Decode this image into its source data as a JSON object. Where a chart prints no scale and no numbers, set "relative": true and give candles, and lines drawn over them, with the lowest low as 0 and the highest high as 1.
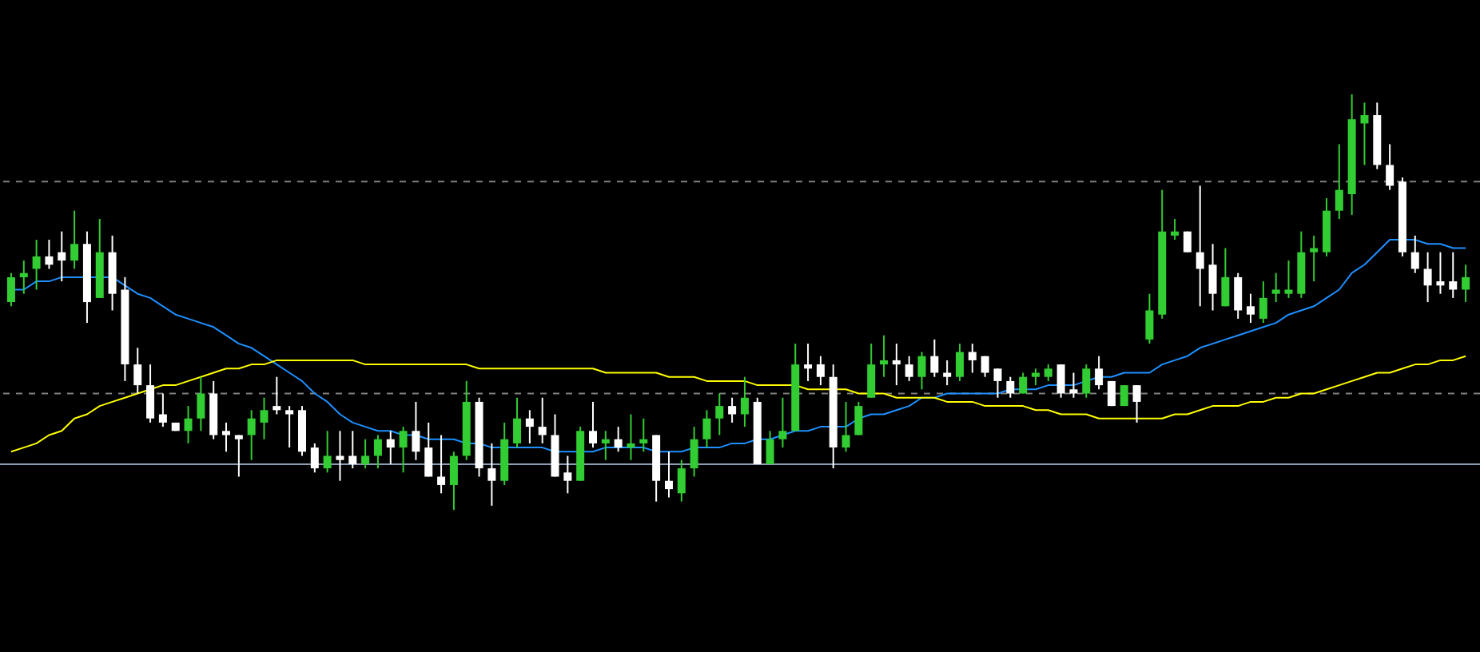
{
  "chart_data": {
    "type": "candlestick",
    "relative": true,
    "categories": [
      null,
      null,
      null,
      null,
      null,
      null,
      null,
      null,
      null,
      null,
      null,
      null,
      null,
      null,
      null,
      null,
      null,
      null,
      null,
      null,
      null,
      null,
      null,
      null,
      null,
      null,
      null,
      null,
      null,
      null,
      null,
      null,
      null,
      null,
      null,
      null,
      null,
      null,
      null,
      null,
      null,
      null,
      null,
      null,
      null,
      null,
      null,
      null,
      null,
      null,
      null,
      null,
      null,
      null,
      null,
      null,
      null,
      null,
      null,
      null,
      null,
      null,
      null,
      null,
      null,
      null,
      null,
      null,
      null,
      null,
      null,
      null,
      null,
      null,
      null,
      null,
      null,
      null,
      null,
      null,
      null,
      null,
      null,
      null,
      null,
      null,
      null,
      null,
      null,
      null,
      null,
      null,
      null,
      null,
      null,
      null,
      null,
      null,
      null,
      null,
      null,
      null,
      null,
      null,
      null,
      null,
      null,
      null,
      null,
      null,
      null,
      null,
      null,
      null,
      null,
      null
    ],
    "ohlc": [
      [
        0.5,
        0.57,
        0.49,
        0.56
      ],
      [
        0.56,
        0.6,
        0.52,
        0.57
      ],
      [
        0.58,
        0.65,
        0.53,
        0.61
      ],
      [
        0.61,
        0.65,
        0.58,
        0.59
      ],
      [
        0.62,
        0.67,
        0.55,
        0.6
      ],
      [
        0.6,
        0.72,
        0.58,
        0.64
      ],
      [
        0.64,
        0.67,
        0.45,
        0.5
      ],
      [
        0.51,
        0.7,
        0.51,
        0.62
      ],
      [
        0.62,
        0.66,
        0.48,
        0.52
      ],
      [
        0.53,
        0.56,
        0.31,
        0.35
      ],
      [
        0.35,
        0.39,
        0.28,
        0.3
      ],
      [
        0.3,
        0.35,
        0.21,
        0.22
      ],
      [
        0.23,
        0.28,
        0.2,
        0.21
      ],
      [
        0.21,
        0.21,
        0.19,
        0.19
      ],
      [
        0.19,
        0.25,
        0.16,
        0.22
      ],
      [
        0.22,
        0.32,
        0.19,
        0.28
      ],
      [
        0.28,
        0.31,
        0.17,
        0.18
      ],
      [
        0.19,
        0.21,
        0.14,
        0.18
      ],
      [
        0.18,
        0.18,
        0.08,
        0.17
      ],
      [
        0.18,
        0.24,
        0.12,
        0.22
      ],
      [
        0.21,
        0.27,
        0.17,
        0.24
      ],
      [
        0.25,
        0.32,
        0.23,
        0.24
      ],
      [
        0.24,
        0.25,
        0.15,
        0.23
      ],
      [
        0.24,
        0.25,
        0.13,
        0.14
      ],
      [
        0.15,
        0.16,
        0.09,
        0.1
      ],
      [
        0.1,
        0.19,
        0.09,
        0.13
      ],
      [
        0.13,
        0.19,
        0.07,
        0.12
      ],
      [
        0.13,
        0.19,
        0.1,
        0.11
      ],
      [
        0.11,
        0.17,
        0.1,
        0.13
      ],
      [
        0.13,
        0.18,
        0.1,
        0.17
      ],
      [
        0.17,
        0.19,
        0.11,
        0.15
      ],
      [
        0.15,
        0.2,
        0.09,
        0.19
      ],
      [
        0.19,
        0.26,
        0.12,
        0.14
      ],
      [
        0.15,
        0.21,
        0.08,
        0.08
      ],
      [
        0.08,
        0.18,
        0.04,
        0.06
      ],
      [
        0.06,
        0.14,
        0,
        0.13
      ],
      [
        0.13,
        0.31,
        0.12,
        0.26
      ],
      [
        0.26,
        0.27,
        0.08,
        0.1
      ],
      [
        0.1,
        0.16,
        0.01,
        0.07
      ],
      [
        0.07,
        0.21,
        0.06,
        0.17
      ],
      [
        0.16,
        0.27,
        0.15,
        0.22
      ],
      [
        0.22,
        0.24,
        0.16,
        0.2
      ],
      [
        0.2,
        0.27,
        0.16,
        0.18
      ],
      [
        0.18,
        0.23,
        0.08,
        0.08
      ],
      [
        0.09,
        0.13,
        0.04,
        0.07
      ],
      [
        0.07,
        0.2,
        0.07,
        0.19
      ],
      [
        0.19,
        0.26,
        0.15,
        0.16
      ],
      [
        0.16,
        0.19,
        0.12,
        0.17
      ],
      [
        0.17,
        0.2,
        0.14,
        0.15
      ],
      [
        0.15,
        0.23,
        0.12,
        0.16
      ],
      [
        0.16,
        0.22,
        0.14,
        0.17
      ],
      [
        0.18,
        0.18,
        0.02,
        0.07
      ],
      [
        0.07,
        0.14,
        0.03,
        0.05
      ],
      [
        0.04,
        0.12,
        0.02,
        0.1
      ],
      [
        0.1,
        0.2,
        0.08,
        0.17
      ],
      [
        0.17,
        0.24,
        0.15,
        0.22
      ],
      [
        0.22,
        0.28,
        0.18,
        0.25
      ],
      [
        0.25,
        0.27,
        0.21,
        0.23
      ],
      [
        0.23,
        0.32,
        0.2,
        0.27
      ],
      [
        0.26,
        0.27,
        0.11,
        0.11
      ],
      [
        0.11,
        0.19,
        0.11,
        0.17
      ],
      [
        0.17,
        0.27,
        0.15,
        0.19
      ],
      [
        0.19,
        0.4,
        0.19,
        0.35
      ],
      [
        0.35,
        0.4,
        0.31,
        0.34
      ],
      [
        0.35,
        0.37,
        0.3,
        0.32
      ],
      [
        0.32,
        0.35,
        0.1,
        0.15
      ],
      [
        0.15,
        0.26,
        0.14,
        0.18
      ],
      [
        0.18,
        0.26,
        0.18,
        0.25
      ],
      [
        0.27,
        0.4,
        0.27,
        0.35
      ],
      [
        0.35,
        0.42,
        0.32,
        0.36
      ],
      [
        0.36,
        0.4,
        0.3,
        0.35
      ],
      [
        0.35,
        0.37,
        0.31,
        0.32
      ],
      [
        0.32,
        0.38,
        0.29,
        0.37
      ],
      [
        0.37,
        0.41,
        0.32,
        0.33
      ],
      [
        0.33,
        0.36,
        0.3,
        0.32
      ],
      [
        0.32,
        0.4,
        0.31,
        0.38
      ],
      [
        0.38,
        0.4,
        0.33,
        0.36
      ],
      [
        0.37,
        0.37,
        0.32,
        0.33
      ],
      [
        0.34,
        0.34,
        0.27,
        0.31
      ],
      [
        0.31,
        0.32,
        0.27,
        0.28
      ],
      [
        0.28,
        0.33,
        0.28,
        0.32
      ],
      [
        0.32,
        0.34,
        0.3,
        0.33
      ],
      [
        0.32,
        0.35,
        0.31,
        0.34
      ],
      [
        0.35,
        0.35,
        0.27,
        0.28
      ],
      [
        0.29,
        0.33,
        0.27,
        0.28
      ],
      [
        0.28,
        0.35,
        0.27,
        0.34
      ],
      [
        0.34,
        0.37,
        0.29,
        0.3
      ],
      [
        0.31,
        0.31,
        0.25,
        0.25
      ],
      [
        0.25,
        0.3,
        0.25,
        0.3
      ],
      [
        0.3,
        0.3,
        0.21,
        0.26
      ],
      [
        0.41,
        0.52,
        0.4,
        0.48
      ],
      [
        0.47,
        0.77,
        0.46,
        0.67
      ],
      [
        0.66,
        0.7,
        0.65,
        0.67
      ],
      [
        0.67,
        0.67,
        0.62,
        0.62
      ],
      [
        0.62,
        0.78,
        0.49,
        0.58
      ],
      [
        0.59,
        0.64,
        0.48,
        0.52
      ],
      [
        0.49,
        0.63,
        0.49,
        0.56
      ],
      [
        0.56,
        0.57,
        0.46,
        0.48
      ],
      [
        0.49,
        0.52,
        0.45,
        0.47
      ],
      [
        0.46,
        0.55,
        0.45,
        0.51
      ],
      [
        0.52,
        0.57,
        0.5,
        0.53
      ],
      [
        0.52,
        0.6,
        0.51,
        0.53
      ],
      [
        0.52,
        0.67,
        0.51,
        0.62
      ],
      [
        0.62,
        0.66,
        0.55,
        0.63
      ],
      [
        0.62,
        0.75,
        0.61,
        0.72
      ],
      [
        0.72,
        0.88,
        0.7,
        0.77
      ],
      [
        0.76,
        1,
        0.71,
        0.94
      ],
      [
        0.93,
        0.98,
        0.83,
        0.95
      ],
      [
        0.95,
        0.98,
        0.82,
        0.83
      ],
      [
        0.83,
        0.88,
        0.77,
        0.78
      ],
      [
        0.79,
        0.8,
        0.61,
        0.62
      ],
      [
        0.62,
        0.66,
        0.57,
        0.58
      ],
      [
        0.58,
        0.62,
        0.5,
        0.54
      ],
      [
        0.55,
        0.62,
        0.52,
        0.54
      ],
      [
        0.55,
        0.62,
        0.51,
        0.53
      ],
      [
        0.53,
        0.59,
        0.5,
        0.56
      ]
    ],
    "series": [
      {
        "type": "line",
        "color": "#1e90ff",
        "values": [
          0.53,
          0.53,
          0.55,
          0.55,
          0.56,
          0.56,
          0.56,
          0.56,
          0.56,
          0.54,
          0.52,
          0.51,
          0.49,
          0.47,
          0.46,
          0.45,
          0.44,
          0.42,
          0.4,
          0.39,
          0.37,
          0.35,
          0.33,
          0.31,
          0.28,
          0.26,
          0.23,
          0.21,
          0.2,
          0.19,
          0.19,
          0.18,
          0.18,
          0.17,
          0.17,
          0.17,
          0.16,
          0.16,
          0.15,
          0.15,
          0.15,
          0.15,
          0.15,
          0.14,
          0.14,
          0.14,
          0.14,
          0.15,
          0.15,
          0.15,
          0.15,
          0.14,
          0.14,
          0.14,
          0.15,
          0.15,
          0.15,
          0.16,
          0.16,
          0.17,
          0.17,
          0.18,
          0.19,
          0.19,
          0.2,
          0.2,
          0.2,
          0.22,
          0.23,
          0.23,
          0.24,
          0.25,
          0.27,
          0.27,
          0.28,
          0.28,
          0.28,
          0.28,
          0.28,
          0.29,
          0.29,
          0.29,
          0.3,
          0.3,
          0.3,
          0.31,
          0.32,
          0.32,
          0.33,
          0.33,
          0.33,
          0.35,
          0.36,
          0.37,
          0.39,
          0.4,
          0.41,
          0.42,
          0.43,
          0.44,
          0.45,
          0.47,
          0.48,
          0.49,
          0.51,
          0.53,
          0.57,
          0.59,
          0.62,
          0.65,
          0.65,
          0.65,
          0.64,
          0.64,
          0.63,
          0.63
        ]
      },
      {
        "type": "line",
        "color": "#ffff00",
        "values": [
          0.14,
          0.15,
          0.16,
          0.18,
          0.19,
          0.22,
          0.23,
          0.25,
          0.26,
          0.27,
          0.28,
          0.29,
          0.3,
          0.3,
          0.31,
          0.32,
          0.33,
          0.34,
          0.34,
          0.35,
          0.35,
          0.36,
          0.36,
          0.36,
          0.36,
          0.36,
          0.36,
          0.36,
          0.35,
          0.35,
          0.35,
          0.35,
          0.35,
          0.35,
          0.35,
          0.35,
          0.35,
          0.34,
          0.34,
          0.34,
          0.34,
          0.34,
          0.34,
          0.34,
          0.34,
          0.34,
          0.34,
          0.33,
          0.33,
          0.33,
          0.33,
          0.33,
          0.32,
          0.32,
          0.32,
          0.31,
          0.31,
          0.31,
          0.31,
          0.3,
          0.3,
          0.3,
          0.3,
          0.29,
          0.29,
          0.29,
          0.29,
          0.28,
          0.28,
          0.28,
          0.27,
          0.27,
          0.27,
          0.27,
          0.26,
          0.26,
          0.26,
          0.25,
          0.25,
          0.25,
          0.25,
          0.24,
          0.24,
          0.23,
          0.23,
          0.23,
          0.22,
          0.22,
          0.22,
          0.22,
          0.22,
          0.22,
          0.23,
          0.23,
          0.24,
          0.25,
          0.25,
          0.25,
          0.26,
          0.26,
          0.27,
          0.27,
          0.28,
          0.28,
          0.29,
          0.3,
          0.31,
          0.32,
          0.33,
          0.33,
          0.34,
          0.35,
          0.35,
          0.36,
          0.36,
          0.37
        ]
      }
    ],
    "ref_lines": [
      {
        "axis": "y",
        "value": 0.79,
        "color": "#808080",
        "line_style": "dashed"
      },
      {
        "axis": "y",
        "value": 0.28,
        "color": "#808080",
        "line_style": "dashed"
      },
      {
        "axis": "y",
        "value": 0.11,
        "color": "#8a9bb5",
        "line_style": "solid"
      }
    ]
  }
}
